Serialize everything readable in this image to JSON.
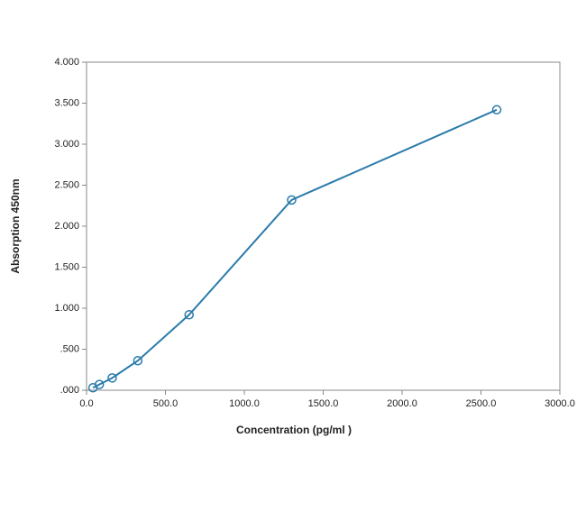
{
  "chart_data": {
    "type": "line",
    "xlabel": "Concentration (pg/ml )",
    "ylabel": "Absorption 450nm",
    "x": [
      40.6,
      81.25,
      162.5,
      325,
      650,
      1300,
      2600
    ],
    "values": [
      0.03,
      0.07,
      0.15,
      0.36,
      0.92,
      2.32,
      3.42
    ],
    "color": "#2b7bab",
    "markers": true,
    "grid": false,
    "xlim": [
      0,
      3000
    ],
    "xticks": [
      {
        "value": 0,
        "label": "0.0"
      },
      {
        "value": 500,
        "label": "500.0"
      },
      {
        "value": 1000,
        "label": "1000.0"
      },
      {
        "value": 1500,
        "label": "1500.0"
      },
      {
        "value": 2000,
        "label": "2000.0"
      },
      {
        "value": 2500,
        "label": "2500.0"
      },
      {
        "value": 3000,
        "label": "3000.0"
      }
    ],
    "ylim": [
      0,
      4
    ],
    "yticks": [
      {
        "value": 0,
        "label": ".000"
      },
      {
        "value": 0.5,
        "label": ".500"
      },
      {
        "value": 1,
        "label": "1.000"
      },
      {
        "value": 1.5,
        "label": "1.500"
      },
      {
        "value": 2,
        "label": "2.000"
      },
      {
        "value": 2.5,
        "label": "2.500"
      },
      {
        "value": 3,
        "label": "3.000"
      },
      {
        "value": 3.5,
        "label": "3.500"
      },
      {
        "value": 4,
        "label": "4.000"
      }
    ]
  }
}
